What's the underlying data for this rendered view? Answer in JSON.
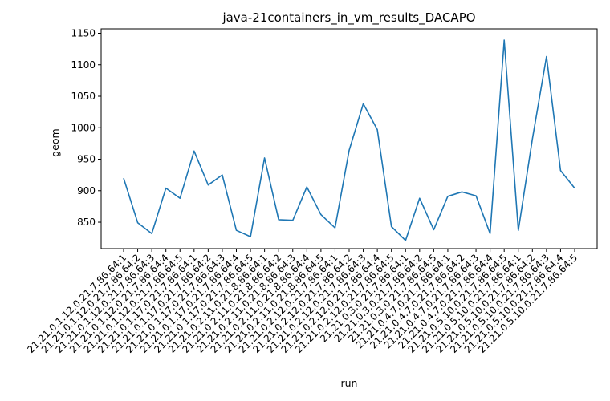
{
  "chart_data": {
    "type": "line",
    "title": "java-21containers_in_vm_results_DACAPO",
    "xlabel": "run",
    "ylabel": "geom",
    "ylim": [
      808,
      1157
    ],
    "yticks": [
      850,
      900,
      950,
      1000,
      1050,
      1100,
      1150
    ],
    "grid": false,
    "legend": "none",
    "line_color": "#1f77b4",
    "categories": [
      "21.21.0.1.12.0.21.7.86.64:1",
      "21.21.0.1.12.0.21.7.86.64:2",
      "21.21.0.1.12.0.21.7.86.64:3",
      "21.21.0.1.12.0.21.7.86.64:4",
      "21.21.0.1.12.0.21.7.86.64:5",
      "21.21.0.1.17.0.21.7.86.64:1",
      "21.21.0.1.17.0.21.7.86.64:2",
      "21.21.0.1.17.0.21.7.86.64:3",
      "21.21.0.1.17.0.21.7.86.64:4",
      "21.21.0.1.17.0.21.7.86.64:5",
      "21.21.0.2.11.0.21.8.86.64:1",
      "21.21.0.2.11.0.21.8.86.64:2",
      "21.21.0.2.11.0.21.8.86.64:3",
      "21.21.0.2.11.0.21.8.86.64:4",
      "21.21.0.2.11.0.21.8.86.64:5",
      "21.21.0.2.12.0.21.7.86.64:1",
      "21.21.0.2.12.0.21.7.86.64:2",
      "21.21.0.2.12.0.21.7.86.64:3",
      "21.21.0.2.12.0.21.7.86.64:4",
      "21.21.0.2.12.0.21.7.86.64:5",
      "21.21.0.3.0.21.7.86.64:1",
      "21.21.0.3.0.21.7.86.64:2",
      "21.21.0.3.0.21.7.86.64:5",
      "21.21.0.4.7.0.21.7.86.64:1",
      "21.21.0.4.7.0.21.7.86.64:2",
      "21.21.0.4.7.0.21.7.86.64:3",
      "21.21.0.4.7.0.21.7.86.64:4",
      "21.21.0.5.10.0.21.7.86.64:5",
      "21.21.0.5.10.0.21.7.86.64:1",
      "21.21.0.5.10.0.21.7.86.64:2",
      "21.21.0.5.10.0.21.7.86.64:3",
      "21.21.0.5.10.0.21.7.86.64:4",
      "21.21.0.5.10.0.21.7.86.64:5"
    ],
    "values": [
      920,
      849,
      832,
      904,
      888,
      963,
      909,
      925,
      837,
      827,
      952,
      854,
      853,
      906,
      862,
      841,
      964,
      1038,
      997,
      843,
      821,
      888,
      838,
      891,
      898,
      892,
      832,
      1139,
      837,
      982,
      1113,
      932,
      904
    ]
  }
}
